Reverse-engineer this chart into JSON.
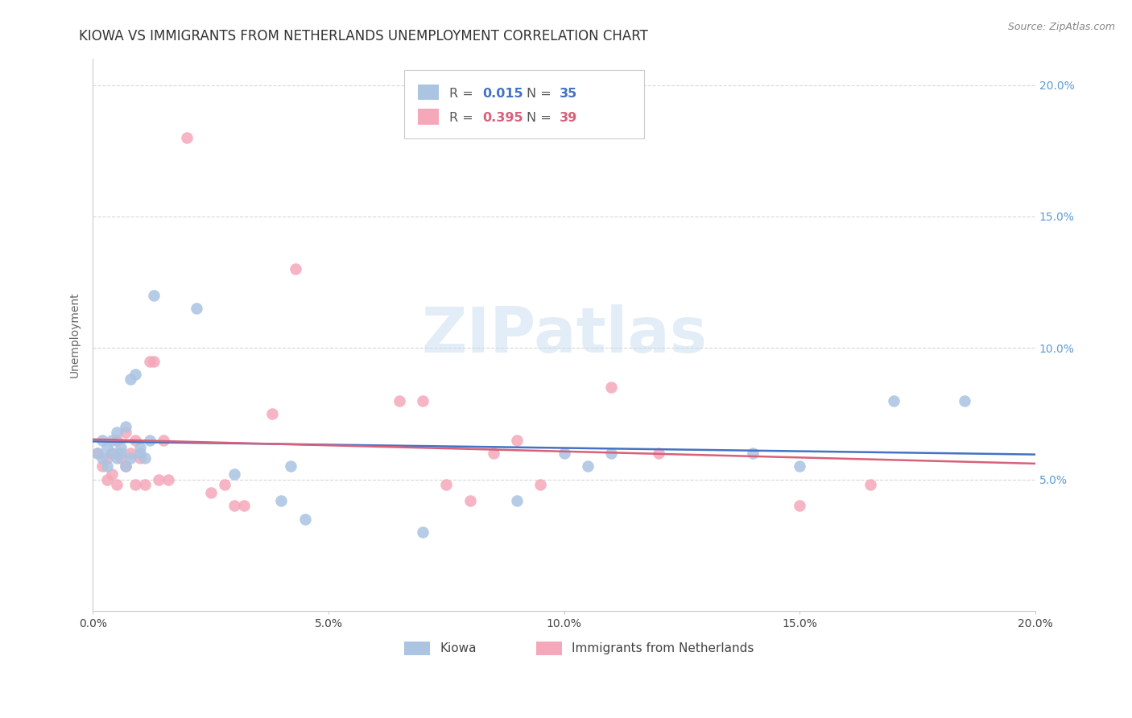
{
  "title": "KIOWA VS IMMIGRANTS FROM NETHERLANDS UNEMPLOYMENT CORRELATION CHART",
  "source": "Source: ZipAtlas.com",
  "ylabel": "Unemployment",
  "xlim": [
    0.0,
    0.2
  ],
  "ylim": [
    0.0,
    0.21
  ],
  "yticks": [
    0.05,
    0.1,
    0.15,
    0.2
  ],
  "xticks": [
    0.0,
    0.05,
    0.1,
    0.15,
    0.2
  ],
  "background_color": "#ffffff",
  "watermark": "ZIPatlas",
  "kiowa_R": 0.015,
  "kiowa_N": 35,
  "netherlands_R": 0.395,
  "netherlands_N": 39,
  "kiowa_color": "#aac4e2",
  "netherlands_color": "#f4a8ba",
  "kiowa_line_color": "#4472c4",
  "netherlands_line_color": "#d9607a",
  "kiowa_x": [
    0.001,
    0.002,
    0.002,
    0.003,
    0.003,
    0.004,
    0.004,
    0.005,
    0.005,
    0.006,
    0.006,
    0.007,
    0.007,
    0.008,
    0.008,
    0.009,
    0.01,
    0.01,
    0.011,
    0.012,
    0.013,
    0.022,
    0.03,
    0.04,
    0.042,
    0.045,
    0.07,
    0.09,
    0.1,
    0.105,
    0.11,
    0.14,
    0.15,
    0.17,
    0.185
  ],
  "kiowa_y": [
    0.06,
    0.058,
    0.065,
    0.055,
    0.062,
    0.06,
    0.065,
    0.058,
    0.068,
    0.06,
    0.062,
    0.055,
    0.07,
    0.088,
    0.058,
    0.09,
    0.06,
    0.062,
    0.058,
    0.065,
    0.12,
    0.115,
    0.052,
    0.042,
    0.055,
    0.035,
    0.03,
    0.042,
    0.06,
    0.055,
    0.06,
    0.06,
    0.055,
    0.08,
    0.08
  ],
  "netherlands_x": [
    0.001,
    0.002,
    0.003,
    0.003,
    0.004,
    0.004,
    0.005,
    0.005,
    0.006,
    0.007,
    0.007,
    0.008,
    0.009,
    0.009,
    0.01,
    0.011,
    0.012,
    0.013,
    0.014,
    0.015,
    0.016,
    0.02,
    0.025,
    0.028,
    0.03,
    0.032,
    0.038,
    0.043,
    0.065,
    0.07,
    0.075,
    0.08,
    0.085,
    0.09,
    0.095,
    0.11,
    0.12,
    0.15,
    0.165
  ],
  "netherlands_y": [
    0.06,
    0.055,
    0.05,
    0.058,
    0.06,
    0.052,
    0.048,
    0.065,
    0.058,
    0.055,
    0.068,
    0.06,
    0.065,
    0.048,
    0.058,
    0.048,
    0.095,
    0.095,
    0.05,
    0.065,
    0.05,
    0.18,
    0.045,
    0.048,
    0.04,
    0.04,
    0.075,
    0.13,
    0.08,
    0.08,
    0.048,
    0.042,
    0.06,
    0.065,
    0.048,
    0.085,
    0.06,
    0.04,
    0.048
  ],
  "grid_color": "#d8d8d8",
  "title_fontsize": 12,
  "axis_label_fontsize": 10,
  "tick_fontsize": 10,
  "right_tick_color": "#5b9bd5"
}
